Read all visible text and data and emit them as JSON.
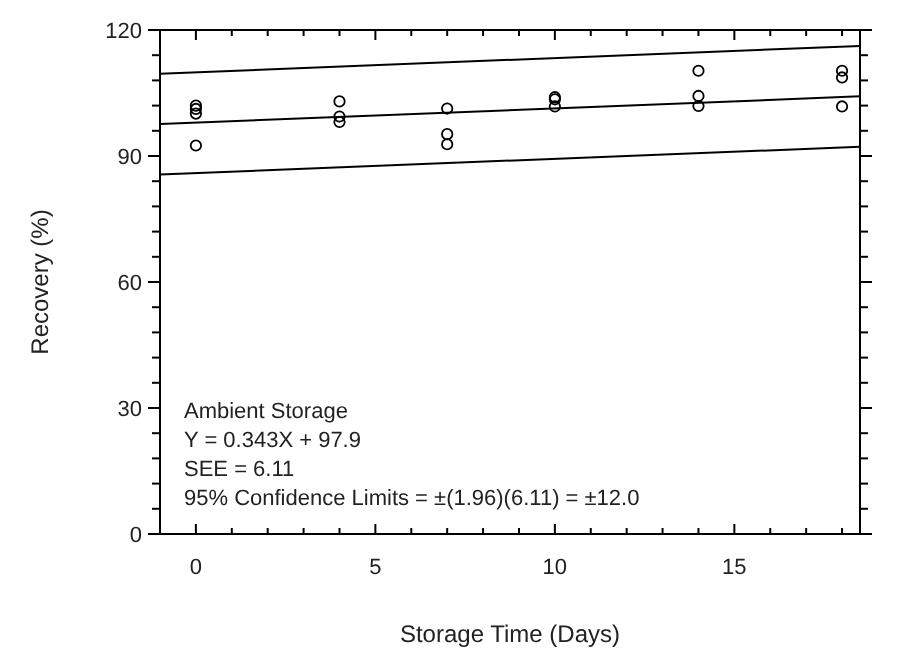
{
  "chart_data": {
    "type": "scatter",
    "xlabel": "Storage Time (Days)",
    "ylabel": "Recovery (%)",
    "xlim": [
      -1,
      18.5
    ],
    "ylim": [
      0,
      120
    ],
    "xticks": [
      0,
      {
        "value": 1,
        "label": null
      },
      {
        "value": 2,
        "label": null
      },
      {
        "value": 3,
        "label": null
      },
      {
        "value": 4,
        "label": null
      },
      5,
      {
        "value": 6,
        "label": null
      },
      {
        "value": 7,
        "label": null
      },
      {
        "value": 8,
        "label": null
      },
      {
        "value": 9,
        "label": null
      },
      10,
      {
        "value": 11,
        "label": null
      },
      {
        "value": 12,
        "label": null
      },
      {
        "value": 13,
        "label": null
      },
      {
        "value": 14,
        "label": null
      },
      15,
      {
        "value": 16,
        "label": null
      },
      {
        "value": 17,
        "label": null
      },
      {
        "value": 18,
        "label": null
      }
    ],
    "yticks": [
      0,
      {
        "value": 6,
        "label": null
      },
      {
        "value": 12,
        "label": null
      },
      {
        "value": 18,
        "label": null
      },
      {
        "value": 24,
        "label": null
      },
      30,
      {
        "value": 36,
        "label": null
      },
      {
        "value": 42,
        "label": null
      },
      {
        "value": 48,
        "label": null
      },
      {
        "value": 54,
        "label": null
      },
      60,
      {
        "value": 66,
        "label": null
      },
      {
        "value": 72,
        "label": null
      },
      {
        "value": 78,
        "label": null
      },
      {
        "value": 84,
        "label": null
      },
      90,
      {
        "value": 96,
        "label": null
      },
      {
        "value": 102,
        "label": null
      },
      {
        "value": 108,
        "label": null
      },
      {
        "value": 114,
        "label": null
      },
      120
    ],
    "grid": false,
    "marker": "circle",
    "series": [
      {
        "color": "#000000",
        "x": [
          0,
          0,
          0,
          0,
          4,
          4,
          4,
          7,
          7,
          7,
          10,
          10,
          10,
          14,
          14,
          14,
          18,
          18,
          18
        ],
        "values": [
          102,
          101.2,
          100.1,
          92.5,
          103,
          99.4,
          98.1,
          101.3,
          95.2,
          92.8,
          104,
          103.5,
          101.8,
          110.3,
          104.3,
          101.9,
          110.3,
          108.7,
          101.8
        ]
      },
      {
        "type": "line",
        "color": "#000000",
        "marker": "none",
        "line_style": "solid",
        "x": [
          -1,
          18.5
        ],
        "values": [
          97.6,
          104.2
        ]
      },
      {
        "type": "line",
        "color": "#000000",
        "marker": "none",
        "line_style": "solid",
        "x": [
          -1,
          18.5
        ],
        "values": [
          109.6,
          116.2
        ]
      },
      {
        "type": "line",
        "color": "#000000",
        "marker": "none",
        "line_style": "solid",
        "x": [
          -1,
          18.5
        ],
        "values": [
          85.6,
          92.2
        ]
      }
    ],
    "annotations": [
      "Ambient Storage",
      "Y = 0.343X + 97.9",
      "SEE = 6.11",
      "95% Confidence Limits = ±(1.96)(6.11) = ±12.0"
    ]
  }
}
